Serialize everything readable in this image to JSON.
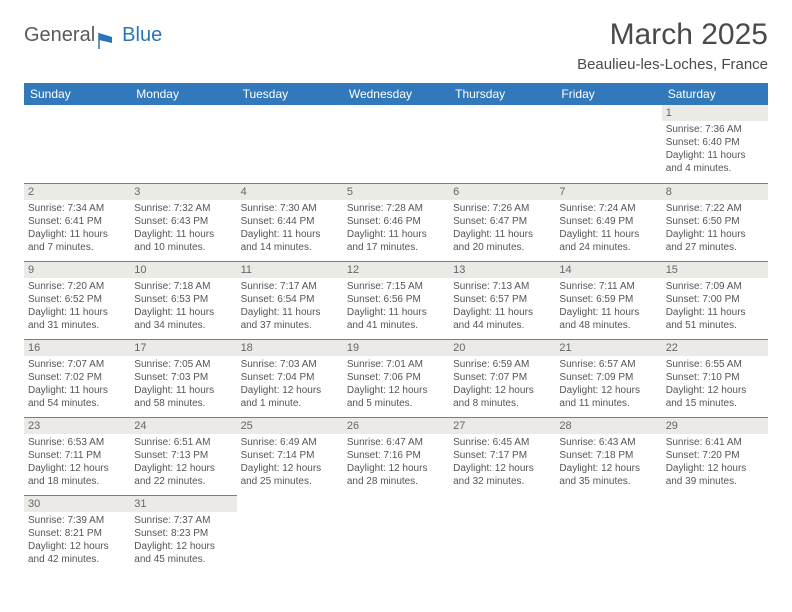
{
  "logo": {
    "general": "General",
    "blue": "Blue"
  },
  "title": "March 2025",
  "location": "Beaulieu-les-Loches, France",
  "colors": {
    "header_bg": "#3279bb",
    "header_text": "#ffffff",
    "border": "#4a8ac0",
    "daynum_bg": "#eceae6",
    "text": "#555555",
    "logo_gray": "#5a5a5a",
    "logo_blue": "#2a74b8"
  },
  "weekdays": [
    "Sunday",
    "Monday",
    "Tuesday",
    "Wednesday",
    "Thursday",
    "Friday",
    "Saturday"
  ],
  "weeks": [
    [
      null,
      null,
      null,
      null,
      null,
      null,
      {
        "n": "1",
        "sr": "Sunrise: 7:36 AM",
        "ss": "Sunset: 6:40 PM",
        "dl": "Daylight: 11 hours and 4 minutes."
      }
    ],
    [
      {
        "n": "2",
        "sr": "Sunrise: 7:34 AM",
        "ss": "Sunset: 6:41 PM",
        "dl": "Daylight: 11 hours and 7 minutes."
      },
      {
        "n": "3",
        "sr": "Sunrise: 7:32 AM",
        "ss": "Sunset: 6:43 PM",
        "dl": "Daylight: 11 hours and 10 minutes."
      },
      {
        "n": "4",
        "sr": "Sunrise: 7:30 AM",
        "ss": "Sunset: 6:44 PM",
        "dl": "Daylight: 11 hours and 14 minutes."
      },
      {
        "n": "5",
        "sr": "Sunrise: 7:28 AM",
        "ss": "Sunset: 6:46 PM",
        "dl": "Daylight: 11 hours and 17 minutes."
      },
      {
        "n": "6",
        "sr": "Sunrise: 7:26 AM",
        "ss": "Sunset: 6:47 PM",
        "dl": "Daylight: 11 hours and 20 minutes."
      },
      {
        "n": "7",
        "sr": "Sunrise: 7:24 AM",
        "ss": "Sunset: 6:49 PM",
        "dl": "Daylight: 11 hours and 24 minutes."
      },
      {
        "n": "8",
        "sr": "Sunrise: 7:22 AM",
        "ss": "Sunset: 6:50 PM",
        "dl": "Daylight: 11 hours and 27 minutes."
      }
    ],
    [
      {
        "n": "9",
        "sr": "Sunrise: 7:20 AM",
        "ss": "Sunset: 6:52 PM",
        "dl": "Daylight: 11 hours and 31 minutes."
      },
      {
        "n": "10",
        "sr": "Sunrise: 7:18 AM",
        "ss": "Sunset: 6:53 PM",
        "dl": "Daylight: 11 hours and 34 minutes."
      },
      {
        "n": "11",
        "sr": "Sunrise: 7:17 AM",
        "ss": "Sunset: 6:54 PM",
        "dl": "Daylight: 11 hours and 37 minutes."
      },
      {
        "n": "12",
        "sr": "Sunrise: 7:15 AM",
        "ss": "Sunset: 6:56 PM",
        "dl": "Daylight: 11 hours and 41 minutes."
      },
      {
        "n": "13",
        "sr": "Sunrise: 7:13 AM",
        "ss": "Sunset: 6:57 PM",
        "dl": "Daylight: 11 hours and 44 minutes."
      },
      {
        "n": "14",
        "sr": "Sunrise: 7:11 AM",
        "ss": "Sunset: 6:59 PM",
        "dl": "Daylight: 11 hours and 48 minutes."
      },
      {
        "n": "15",
        "sr": "Sunrise: 7:09 AM",
        "ss": "Sunset: 7:00 PM",
        "dl": "Daylight: 11 hours and 51 minutes."
      }
    ],
    [
      {
        "n": "16",
        "sr": "Sunrise: 7:07 AM",
        "ss": "Sunset: 7:02 PM",
        "dl": "Daylight: 11 hours and 54 minutes."
      },
      {
        "n": "17",
        "sr": "Sunrise: 7:05 AM",
        "ss": "Sunset: 7:03 PM",
        "dl": "Daylight: 11 hours and 58 minutes."
      },
      {
        "n": "18",
        "sr": "Sunrise: 7:03 AM",
        "ss": "Sunset: 7:04 PM",
        "dl": "Daylight: 12 hours and 1 minute."
      },
      {
        "n": "19",
        "sr": "Sunrise: 7:01 AM",
        "ss": "Sunset: 7:06 PM",
        "dl": "Daylight: 12 hours and 5 minutes."
      },
      {
        "n": "20",
        "sr": "Sunrise: 6:59 AM",
        "ss": "Sunset: 7:07 PM",
        "dl": "Daylight: 12 hours and 8 minutes."
      },
      {
        "n": "21",
        "sr": "Sunrise: 6:57 AM",
        "ss": "Sunset: 7:09 PM",
        "dl": "Daylight: 12 hours and 11 minutes."
      },
      {
        "n": "22",
        "sr": "Sunrise: 6:55 AM",
        "ss": "Sunset: 7:10 PM",
        "dl": "Daylight: 12 hours and 15 minutes."
      }
    ],
    [
      {
        "n": "23",
        "sr": "Sunrise: 6:53 AM",
        "ss": "Sunset: 7:11 PM",
        "dl": "Daylight: 12 hours and 18 minutes."
      },
      {
        "n": "24",
        "sr": "Sunrise: 6:51 AM",
        "ss": "Sunset: 7:13 PM",
        "dl": "Daylight: 12 hours and 22 minutes."
      },
      {
        "n": "25",
        "sr": "Sunrise: 6:49 AM",
        "ss": "Sunset: 7:14 PM",
        "dl": "Daylight: 12 hours and 25 minutes."
      },
      {
        "n": "26",
        "sr": "Sunrise: 6:47 AM",
        "ss": "Sunset: 7:16 PM",
        "dl": "Daylight: 12 hours and 28 minutes."
      },
      {
        "n": "27",
        "sr": "Sunrise: 6:45 AM",
        "ss": "Sunset: 7:17 PM",
        "dl": "Daylight: 12 hours and 32 minutes."
      },
      {
        "n": "28",
        "sr": "Sunrise: 6:43 AM",
        "ss": "Sunset: 7:18 PM",
        "dl": "Daylight: 12 hours and 35 minutes."
      },
      {
        "n": "29",
        "sr": "Sunrise: 6:41 AM",
        "ss": "Sunset: 7:20 PM",
        "dl": "Daylight: 12 hours and 39 minutes."
      }
    ],
    [
      {
        "n": "30",
        "sr": "Sunrise: 7:39 AM",
        "ss": "Sunset: 8:21 PM",
        "dl": "Daylight: 12 hours and 42 minutes."
      },
      {
        "n": "31",
        "sr": "Sunrise: 7:37 AM",
        "ss": "Sunset: 8:23 PM",
        "dl": "Daylight: 12 hours and 45 minutes."
      },
      null,
      null,
      null,
      null,
      null
    ]
  ]
}
